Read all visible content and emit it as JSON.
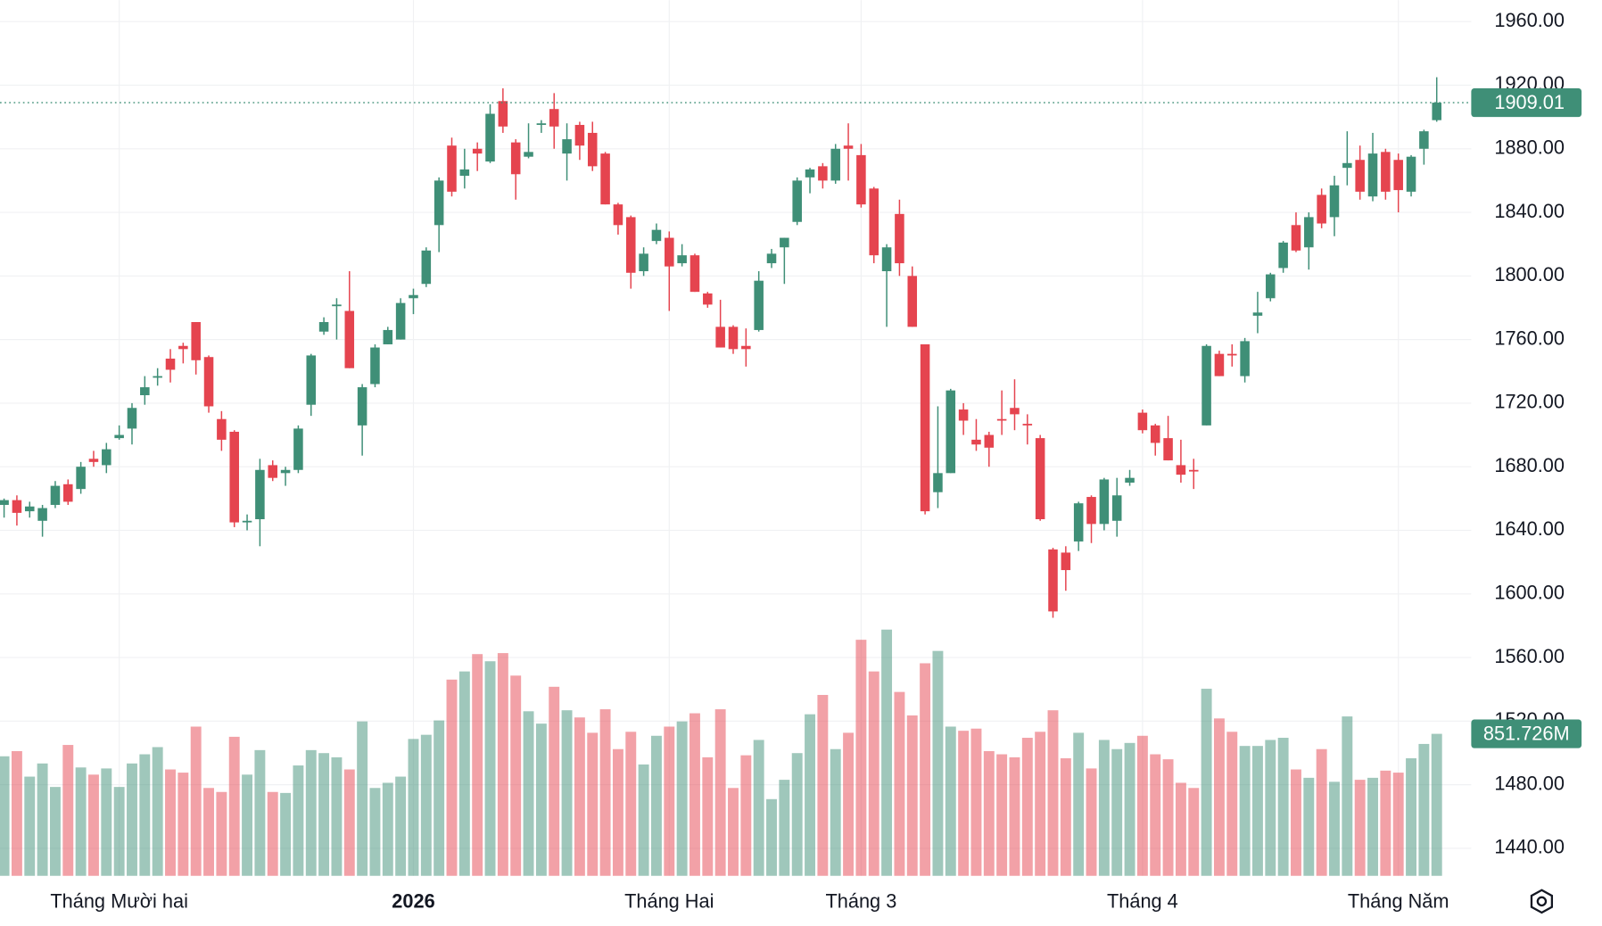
{
  "chart_data": {
    "type": "candlestick",
    "categories": [
      null,
      null,
      null,
      null,
      null,
      null,
      null,
      null,
      null,
      "Tháng Mười hai",
      null,
      null,
      null,
      null,
      null,
      null,
      null,
      null,
      null,
      null,
      null,
      null,
      null,
      null,
      null,
      null,
      null,
      null,
      null,
      null,
      null,
      null,
      "2026",
      null,
      null,
      null,
      null,
      null,
      null,
      null,
      null,
      null,
      null,
      null,
      null,
      null,
      null,
      null,
      null,
      null,
      null,
      null,
      "Tháng Hai",
      null,
      null,
      null,
      null,
      null,
      null,
      null,
      null,
      null,
      null,
      null,
      null,
      null,
      null,
      "Tháng 3",
      null,
      null,
      null,
      null,
      null,
      null,
      null,
      null,
      null,
      null,
      null,
      null,
      null,
      null,
      null,
      null,
      null,
      null,
      null,
      null,
      null,
      "Tháng 4",
      null,
      null,
      null,
      null,
      null,
      null,
      null,
      null,
      null,
      null,
      null,
      null,
      null,
      null,
      null,
      null,
      null,
      null,
      null,
      "Tháng Năm",
      null,
      null,
      null
    ],
    "open": [
      1656,
      1659,
      1652,
      1646,
      1656,
      1669,
      1666,
      1685,
      1681,
      1698,
      1704,
      1725,
      1736,
      1748,
      1756,
      1771,
      1749,
      1710,
      1702,
      1645,
      1647,
      1681,
      1676,
      1678,
      1719,
      1765,
      1781,
      1778,
      1706,
      1732,
      1757,
      1760,
      1786,
      1795,
      1832,
      1882,
      1863,
      1880,
      1872,
      1910,
      1884,
      1875,
      1895,
      1905,
      1877,
      1895,
      1890,
      1877,
      1845,
      1837,
      1803,
      1822,
      1824,
      1808,
      1813,
      1789,
      1768,
      1768,
      1756,
      1766,
      1808,
      1818,
      1834,
      1862,
      1869,
      1860,
      1882,
      1876,
      1855,
      1803,
      1839,
      1800,
      1757,
      1664,
      1676,
      1716,
      1697,
      1700,
      1710,
      1717,
      1707,
      1698,
      1628,
      1626,
      1633,
      1661,
      1644,
      1646,
      1670,
      1714,
      1706,
      1698,
      1681,
      1678,
      1706,
      1751,
      1751,
      1737,
      1775,
      1786,
      1805,
      1832,
      1818,
      1851,
      1837,
      1868,
      1873,
      1850,
      1878,
      1873,
      1853,
      1880,
      1898
    ],
    "high": [
      1660,
      1662,
      1658,
      1656,
      1671,
      1672,
      1683,
      1690,
      1695,
      1706,
      1720,
      1737,
      1742,
      1754,
      1758,
      1771,
      1750,
      1715,
      1703,
      1650,
      1685,
      1684,
      1680,
      1706,
      1751,
      1774,
      1786,
      1803,
      1732,
      1757,
      1768,
      1786,
      1792,
      1818,
      1862,
      1887,
      1880,
      1884,
      1908,
      1918,
      1886,
      1896,
      1898,
      1915,
      1896,
      1897,
      1897,
      1878,
      1846,
      1838,
      1818,
      1833,
      1828,
      1820,
      1814,
      1790,
      1785,
      1769,
      1767,
      1803,
      1817,
      1824,
      1862,
      1868,
      1871,
      1883,
      1896,
      1883,
      1856,
      1820,
      1848,
      1806,
      1757,
      1718,
      1729,
      1720,
      1710,
      1702,
      1728,
      1735,
      1713,
      1700,
      1629,
      1630,
      1658,
      1662,
      1673,
      1673,
      1678,
      1716,
      1707,
      1712,
      1697,
      1685,
      1757,
      1753,
      1757,
      1761,
      1790,
      1802,
      1822,
      1840,
      1840,
      1855,
      1863,
      1891,
      1882,
      1890,
      1880,
      1877,
      1876,
      1892,
      1925
    ],
    "low": [
      1648,
      1643,
      1648,
      1636,
      1654,
      1656,
      1663,
      1680,
      1676,
      1697,
      1694,
      1719,
      1731,
      1733,
      1745,
      1738,
      1714,
      1690,
      1642,
      1640,
      1630,
      1671,
      1668,
      1676,
      1712,
      1763,
      1760,
      1742,
      1687,
      1730,
      1757,
      1760,
      1776,
      1793,
      1815,
      1850,
      1855,
      1866,
      1871,
      1890,
      1848,
      1874,
      1890,
      1880,
      1860,
      1873,
      1866,
      1845,
      1826,
      1792,
      1800,
      1820,
      1778,
      1806,
      1790,
      1780,
      1755,
      1751,
      1743,
      1765,
      1805,
      1795,
      1832,
      1852,
      1855,
      1858,
      1860,
      1843,
      1808,
      1768,
      1800,
      1768,
      1650,
      1654,
      1676,
      1700,
      1690,
      1680,
      1700,
      1703,
      1694,
      1646,
      1585,
      1602,
      1627,
      1632,
      1640,
      1636,
      1668,
      1701,
      1687,
      1684,
      1670,
      1666,
      1706,
      1737,
      1743,
      1733,
      1764,
      1784,
      1802,
      1815,
      1804,
      1830,
      1825,
      1857,
      1848,
      1847,
      1848,
      1840,
      1850,
      1870,
      1897
    ],
    "close": [
      1659,
      1651,
      1655,
      1654,
      1668,
      1658,
      1680,
      1683,
      1691,
      1700,
      1717,
      1730,
      1737,
      1741,
      1754,
      1747,
      1718,
      1697,
      1645,
      1646,
      1678,
      1673,
      1678,
      1704,
      1750,
      1771,
      1782,
      1742,
      1730,
      1755,
      1766,
      1783,
      1788,
      1816,
      1860,
      1853,
      1867,
      1877,
      1902,
      1894,
      1864,
      1878,
      1896,
      1894,
      1886,
      1882,
      1869,
      1845,
      1832,
      1802,
      1814,
      1829,
      1806,
      1813,
      1790,
      1782,
      1755,
      1754,
      1754,
      1797,
      1814,
      1824,
      1860,
      1867,
      1860,
      1880,
      1880,
      1845,
      1813,
      1818,
      1808,
      1768,
      1652,
      1676,
      1728,
      1709,
      1694,
      1692,
      1709,
      1713,
      1706,
      1647,
      1589,
      1615,
      1657,
      1644,
      1672,
      1662,
      1673,
      1703,
      1695,
      1684,
      1675,
      1677,
      1756,
      1737,
      1750,
      1759,
      1777,
      1801,
      1821,
      1816,
      1837,
      1833,
      1857,
      1871,
      1853,
      1877,
      1853,
      1854,
      1875,
      1891,
      1909.01
    ],
    "volume": [
      717,
      748,
      595,
      674,
      533,
      785,
      650,
      607,
      644,
      533,
      674,
      729,
      772,
      638,
      619,
      895,
      527,
      503,
      834,
      607,
      754,
      503,
      497,
      662,
      754,
      736,
      711,
      638,
      926,
      527,
      558,
      595,
      821,
      846,
      932,
      1177,
      1226,
      1330,
      1287,
      1336,
      1201,
      987,
      913,
      1134,
      993,
      950,
      858,
      999,
      760,
      864,
      668,
      840,
      895,
      926,
      975,
      711,
      999,
      527,
      723,
      815,
      460,
      576,
      736,
      969,
      1085,
      760,
      858,
      1416,
      1226,
      1477,
      1103,
      962,
      1275,
      1349,
      895,
      870,
      883,
      748,
      729,
      711,
      828,
      864,
      993,
      705,
      858,
      644,
      815,
      760,
      797,
      840,
      729,
      699,
      558,
      527,
      1122,
      944,
      864,
      779,
      779,
      815,
      828,
      638,
      588,
      760,
      564,
      956,
      576,
      588,
      631,
      619,
      705,
      791,
      851.726
    ],
    "ylim": [
      1422.7,
      1973.5
    ],
    "volume_lim": [
      0,
      5253
    ],
    "yticks": [
      {
        "value": 1440,
        "label": "1440.00"
      },
      {
        "value": 1480,
        "label": "1480.00"
      },
      {
        "value": 1520,
        "label": "1520.00"
      },
      {
        "value": 1560,
        "label": "1560.00"
      },
      {
        "value": 1600,
        "label": "1600.00"
      },
      {
        "value": 1640,
        "label": "1640.00"
      },
      {
        "value": 1680,
        "label": "1680.00"
      },
      {
        "value": 1720,
        "label": "1720.00"
      },
      {
        "value": 1760,
        "label": "1760.00"
      },
      {
        "value": 1800,
        "label": "1800.00"
      },
      {
        "value": 1840,
        "label": "1840.00"
      },
      {
        "value": 1880,
        "label": "1880.00"
      },
      {
        "value": 1920,
        "label": "1920.00"
      },
      {
        "value": 1960,
        "label": "1960.00"
      }
    ],
    "price_line": {
      "value": 1909.01,
      "label": "1909.01"
    },
    "volume_line": {
      "value": 851.726,
      "label": "851.726M"
    },
    "up_color": "#3f8f77",
    "down_color": "#e5444f",
    "grid": true
  }
}
